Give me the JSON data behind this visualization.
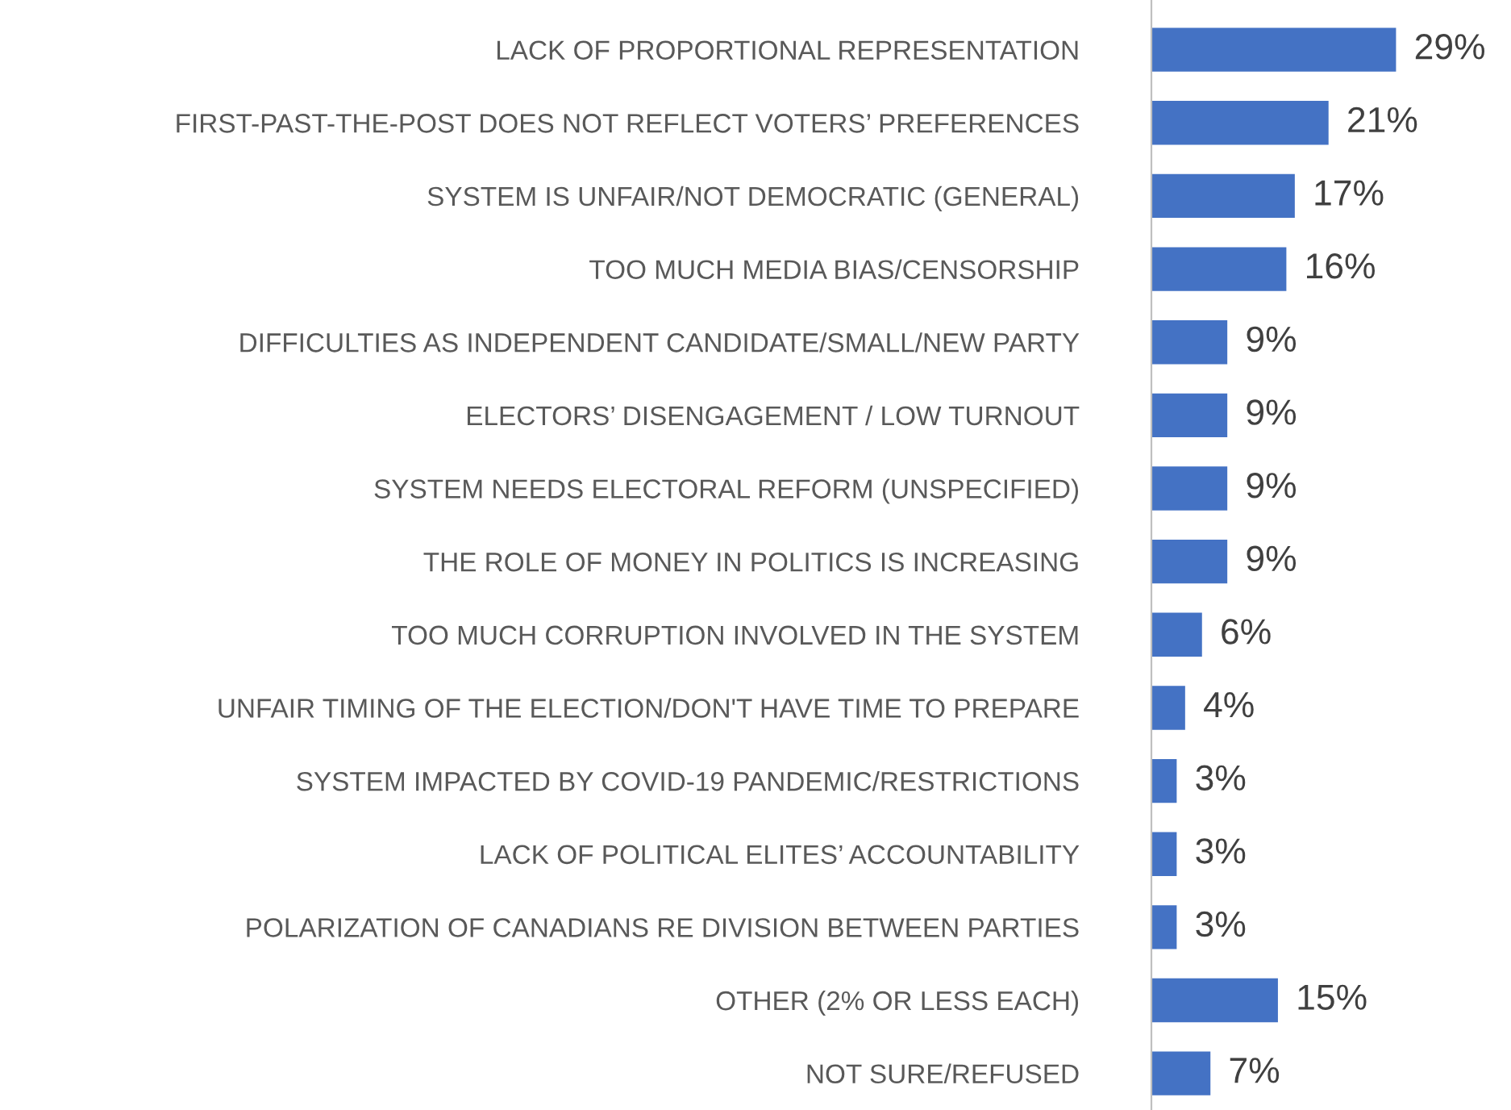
{
  "chart_data": {
    "type": "bar",
    "orientation": "horizontal",
    "categories": [
      "LACK OF PROPORTIONAL REPRESENTATION",
      "FIRST-PAST-THE-POST DOES NOT REFLECT VOTERS’ PREFERENCES",
      "SYSTEM IS UNFAIR/NOT DEMOCRATIC (GENERAL)",
      "TOO MUCH MEDIA BIAS/CENSORSHIP",
      "DIFFICULTIES AS INDEPENDENT CANDIDATE/SMALL/NEW PARTY",
      "ELECTORS’ DISENGAGEMENT / LOW TURNOUT",
      "SYSTEM NEEDS ELECTORAL REFORM (UNSPECIFIED)",
      "THE ROLE OF MONEY IN POLITICS IS INCREASING",
      "TOO MUCH CORRUPTION INVOLVED IN THE SYSTEM",
      "UNFAIR TIMING OF THE ELECTION/DON'T HAVE TIME TO PREPARE",
      "SYSTEM IMPACTED BY COVID-19 PANDEMIC/RESTRICTIONS",
      "LACK OF POLITICAL ELITES’ ACCOUNTABILITY",
      "POLARIZATION OF CANADIANS RE DIVISION BETWEEN PARTIES",
      "OTHER (2% OR LESS EACH)",
      "NOT SURE/REFUSED"
    ],
    "values": [
      29,
      21,
      17,
      16,
      9,
      9,
      9,
      9,
      6,
      4,
      3,
      3,
      3,
      15,
      7
    ],
    "value_labels": [
      "29%",
      "21%",
      "17%",
      "16%",
      "9%",
      "9%",
      "9%",
      "9%",
      "6%",
      "4%",
      "3%",
      "3%",
      "3%",
      "15%",
      "7%"
    ],
    "color": "#4472c4",
    "grid": false,
    "legend": false
  }
}
